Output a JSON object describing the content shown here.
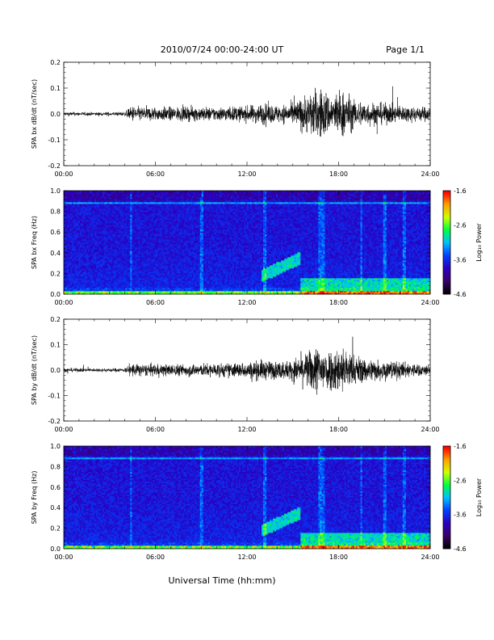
{
  "header": {
    "title": "2010/07/24  00:00-24:00 UT",
    "page_label": "Page 1/1"
  },
  "footer": {
    "xlabel": "Universal Time (hh:mm)"
  },
  "colors": {
    "trace": "#000000",
    "axis": "#000000",
    "background": "#ffffff",
    "colormap": [
      "#000000",
      "#3a006a",
      "#2a00c0",
      "#0040ff",
      "#00c0ff",
      "#00ff40",
      "#d0ff00",
      "#ffa000",
      "#ff0000"
    ]
  },
  "chart_data": [
    {
      "type": "line",
      "ylabel": "SPA bx dB/dt (nT/sec)",
      "xlim_hours": [
        0,
        24
      ],
      "ylim": [
        -0.2,
        0.2
      ],
      "x_ticks": [
        "00:00",
        "06:00",
        "12:00",
        "18:00",
        "24:00"
      ],
      "y_ticks": [
        "-0.2",
        "-0.1",
        "0.0",
        "0.1",
        "0.2"
      ],
      "series": [
        {
          "x_hours": [
            0,
            2,
            4,
            4.5,
            5,
            8,
            10,
            12,
            13,
            14,
            15,
            16,
            16.5,
            17,
            17.5,
            18,
            18.5,
            19,
            20,
            22,
            24
          ],
          "amplitude": [
            0.012,
            0.01,
            0.012,
            0.045,
            0.04,
            0.04,
            0.04,
            0.045,
            0.06,
            0.05,
            0.06,
            0.12,
            0.14,
            0.15,
            0.1,
            0.14,
            0.13,
            0.08,
            0.07,
            0.05,
            0.04
          ]
        }
      ]
    },
    {
      "type": "heatmap",
      "ylabel": "SPA bx Freq (Hz)",
      "xlim_hours": [
        0,
        24
      ],
      "ylim": [
        0,
        1
      ],
      "x_ticks": [
        "00:00",
        "06:00",
        "12:00",
        "18:00",
        "24:00"
      ],
      "y_ticks": [
        "0.0",
        "0.2",
        "0.4",
        "0.6",
        "0.8",
        "1.0"
      ],
      "colorbar": {
        "label": "Log₁₀ Power",
        "range": [
          -4.6,
          -1.6
        ],
        "ticks": [
          "-1.6",
          "-2.6",
          "-3.6",
          "-4.6"
        ]
      },
      "features": {
        "pc1_band": {
          "hours": [
            13,
            15.5
          ],
          "freq": [
            0.18,
            0.35
          ]
        },
        "low_freq_enhancement": {
          "hours": [
            15.5,
            24
          ],
          "freq": [
            0,
            0.15
          ]
        },
        "line_0p88Hz": {
          "freq": 0.88
        }
      }
    },
    {
      "type": "line",
      "ylabel": "SPA by dB/dt (nT/sec)",
      "xlim_hours": [
        0,
        24
      ],
      "ylim": [
        -0.2,
        0.2
      ],
      "x_ticks": [
        "00:00",
        "06:00",
        "12:00",
        "18:00",
        "24:00"
      ],
      "y_ticks": [
        "-0.2",
        "-0.1",
        "0.0",
        "0.1",
        "0.2"
      ],
      "series": [
        {
          "x_hours": [
            0,
            2,
            4,
            4.5,
            5,
            8,
            10,
            12,
            13,
            14,
            15,
            16,
            16.5,
            17,
            17.5,
            18,
            18.5,
            19,
            20,
            22,
            24
          ],
          "amplitude": [
            0.012,
            0.01,
            0.012,
            0.04,
            0.035,
            0.035,
            0.04,
            0.045,
            0.06,
            0.05,
            0.06,
            0.11,
            0.14,
            0.15,
            0.12,
            0.14,
            0.13,
            0.09,
            0.07,
            0.05,
            0.03
          ]
        }
      ]
    },
    {
      "type": "heatmap",
      "ylabel": "SPA by Freq (Hz)",
      "xlim_hours": [
        0,
        24
      ],
      "ylim": [
        0,
        1
      ],
      "x_ticks": [
        "00:00",
        "06:00",
        "12:00",
        "18:00",
        "24:00"
      ],
      "y_ticks": [
        "0.0",
        "0.2",
        "0.4",
        "0.6",
        "0.8",
        "1.0"
      ],
      "colorbar": {
        "label": "Log₁₀ Power",
        "range": [
          -4.6,
          -1.6
        ],
        "ticks": [
          "-1.6",
          "-2.6",
          "-3.6",
          "-4.6"
        ]
      },
      "features": {
        "pc1_band": {
          "hours": [
            13,
            15.5
          ],
          "freq": [
            0.18,
            0.35
          ]
        },
        "low_freq_enhancement": {
          "hours": [
            15.5,
            24
          ],
          "freq": [
            0,
            0.15
          ]
        },
        "line_0p88Hz": {
          "freq": 0.88
        }
      }
    }
  ]
}
